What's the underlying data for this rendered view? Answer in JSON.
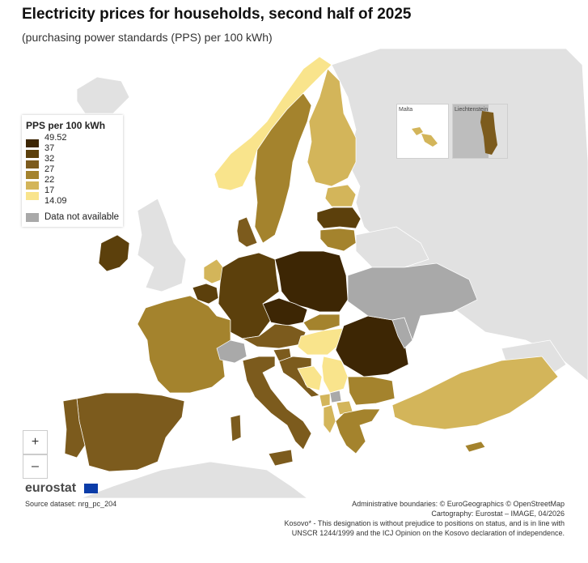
{
  "title": "Electricity prices for households, second half of 2025",
  "subtitle": "(purchasing power standards (PPS) per 100 kWh)",
  "legend": {
    "title": "PPS per 100 kWh",
    "breaks": [
      "49.52",
      "37",
      "32",
      "27",
      "22",
      "17",
      "14.09"
    ],
    "classes": [
      {
        "color": "#3d2604"
      },
      {
        "color": "#5c400c"
      },
      {
        "color": "#7c5b1d"
      },
      {
        "color": "#a4832d"
      },
      {
        "color": "#d3b55a"
      },
      {
        "color": "#f9e48c"
      }
    ],
    "na_label": "Data not available",
    "na_color": "#a9a9a9"
  },
  "insets": {
    "malta": "Malta",
    "liechtenstein": "Liechtenstein"
  },
  "zoom": {
    "in": "+",
    "out": "–"
  },
  "logo": "eurostat",
  "source": "Source dataset: nrg_pc_204",
  "credits": [
    "Administrative boundaries: © EuroGeographics © OpenStreetMap",
    "Cartography: Eurostat – IMAGE, 04/2026",
    "Kosovo* - This designation is without prejudice to positions on status, and is in line with",
    "UNSCR 1244/1999 and the ICJ Opinion on the Kosovo declaration of independence."
  ],
  "regions": [
    {
      "name": "Poland",
      "class": 0
    },
    {
      "name": "Romania",
      "class": 0
    },
    {
      "name": "Czechia",
      "class": 0
    },
    {
      "name": "Germany",
      "class": 1
    },
    {
      "name": "Latvia",
      "class": 1
    },
    {
      "name": "Belgium",
      "class": 1
    },
    {
      "name": "Ireland",
      "class": 1
    },
    {
      "name": "Italy",
      "class": 2
    },
    {
      "name": "Portugal",
      "class": 2
    },
    {
      "name": "Spain",
      "class": 2
    },
    {
      "name": "Austria",
      "class": 2
    },
    {
      "name": "Slovenia",
      "class": 2
    },
    {
      "name": "Croatia",
      "class": 2
    },
    {
      "name": "Denmark",
      "class": 2
    },
    {
      "name": "Lithuania",
      "class": 3
    },
    {
      "name": "France",
      "class": 3
    },
    {
      "name": "Sweden",
      "class": 3
    },
    {
      "name": "Greece",
      "class": 3
    },
    {
      "name": "Slovakia",
      "class": 3
    },
    {
      "name": "Bulgaria",
      "class": 3
    },
    {
      "name": "Cyprus",
      "class": 3
    },
    {
      "name": "Netherlands",
      "class": 4
    },
    {
      "name": "Finland",
      "class": 4
    },
    {
      "name": "Estonia",
      "class": 4
    },
    {
      "name": "Turkey",
      "class": 4
    },
    {
      "name": "Montenegro",
      "class": 4
    },
    {
      "name": "Albania",
      "class": 4
    },
    {
      "name": "North Macedonia",
      "class": 4
    },
    {
      "name": "Malta",
      "class": 4
    },
    {
      "name": "Norway",
      "class": 5
    },
    {
      "name": "Hungary",
      "class": 5
    },
    {
      "name": "Serbia",
      "class": 5
    },
    {
      "name": "Bosnia and Herzegovina",
      "class": 5
    },
    {
      "name": "Switzerland",
      "class": -1
    },
    {
      "name": "Ukraine",
      "class": -1
    },
    {
      "name": "Moldova",
      "class": -1
    },
    {
      "name": "Kosovo",
      "class": -1
    },
    {
      "name": "Liechtenstein",
      "class": 3
    }
  ]
}
